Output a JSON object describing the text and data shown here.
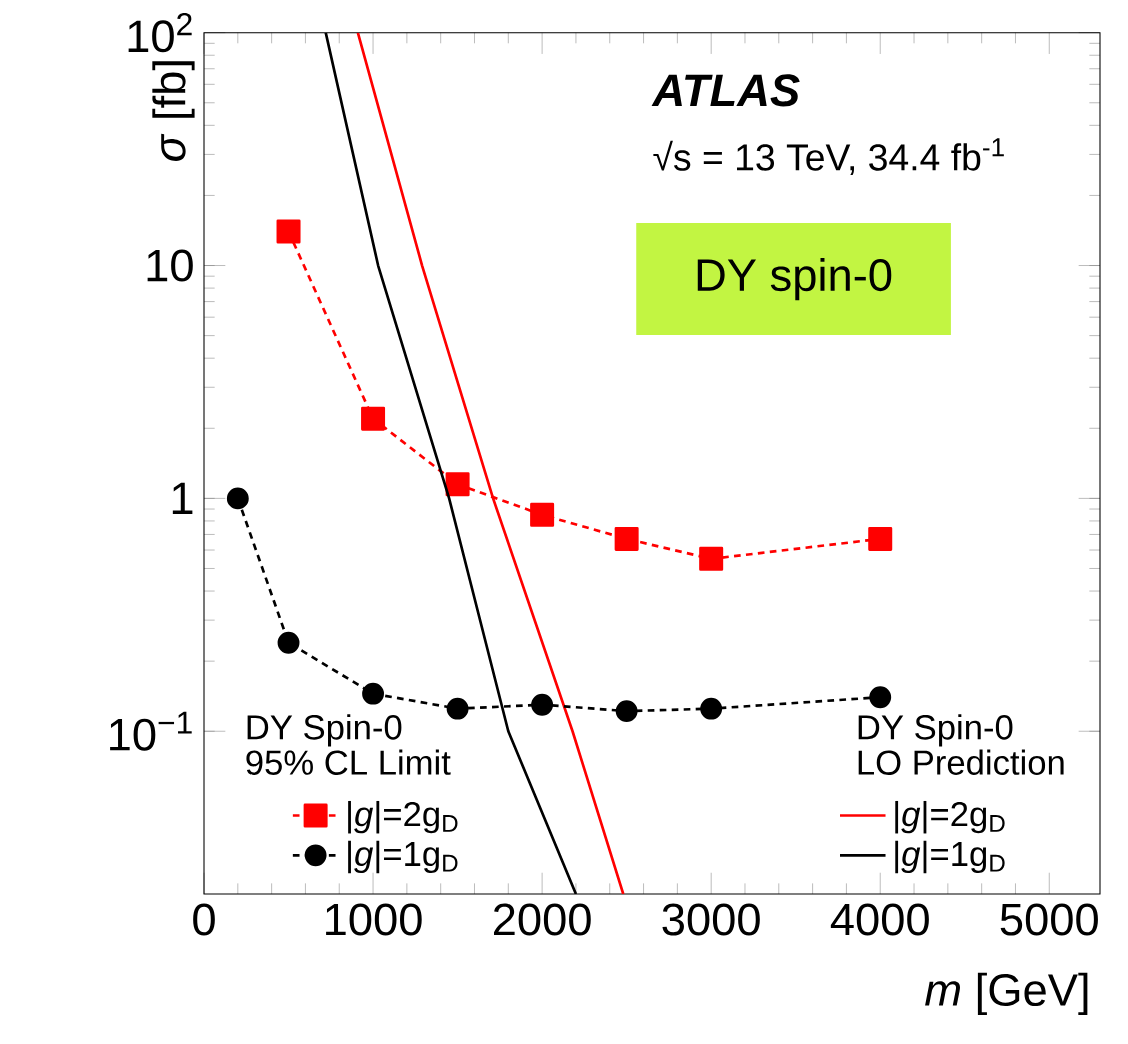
{
  "chart_data": {
    "type": "line",
    "xlabel": "*m* [GeV]",
    "ylabel": "*σ* [fb]",
    "log": "y",
    "xlim": [
      0,
      5300
    ],
    "ylim": [
      0.02,
      100
    ],
    "xticks": [
      0,
      1000,
      2000,
      3000,
      4000,
      5000
    ],
    "yticks": [
      {
        "value": 0.1,
        "label": "10$^{−1}$"
      },
      {
        "value": 1,
        "label": "1"
      },
      {
        "value": 10,
        "label": "10"
      },
      {
        "value": 100,
        "label": "10$^{2}$"
      }
    ],
    "legend": "bottom",
    "grid": false,
    "annotations": [
      "ATLAS",
      "√s = 13 TeV, 34.4 fb$^{-1}$",
      "DY spin-0",
      "DY Spin-0",
      "95% CL Limit",
      "DY Spin-0",
      "LO Prediction"
    ],
    "series": [
      {
        "name": "|*g*|=2g$_{D}$",
        "color": "#ff0000",
        "line_style": "dotted",
        "marker": "square",
        "x": [
          500,
          1000,
          1500,
          2000,
          2500,
          3000,
          4000
        ],
        "values": [
          14,
          2.2,
          1.15,
          0.85,
          0.67,
          0.55,
          0.67
        ]
      },
      {
        "name": "|*g*|=2g$_{D}$",
        "color": "#ff0000",
        "line_style": "solid",
        "marker": "none",
        "x": [
          910,
          1290,
          1710,
          2180,
          2480
        ],
        "values": [
          100,
          10,
          1,
          0.1,
          0.02
        ]
      },
      {
        "name": "|*g*|=1g$_{D}$",
        "color": "#000000",
        "line_style": "dotted",
        "marker": "circle",
        "x": [
          200,
          500,
          1000,
          1500,
          2000,
          2500,
          3000,
          4000
        ],
        "values": [
          1.0,
          0.24,
          0.145,
          0.125,
          0.13,
          0.122,
          0.125,
          0.14
        ]
      },
      {
        "name": "|*g*|=1g$_{D}$",
        "color": "#000000",
        "line_style": "solid",
        "marker": "none",
        "x": [
          720,
          1030,
          1450,
          1800,
          2200
        ],
        "values": [
          100,
          10,
          1,
          0.1,
          0.02
        ]
      }
    ]
  }
}
